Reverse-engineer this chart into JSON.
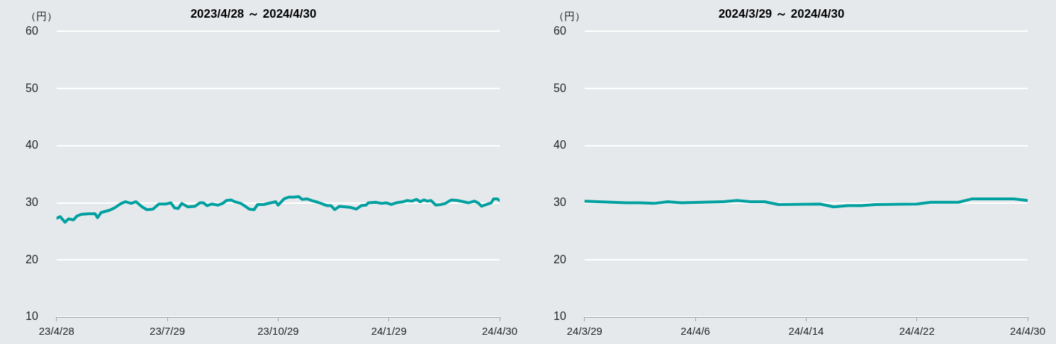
{
  "chart_data": [
    {
      "type": "line",
      "title": "2023/4/28 ～ 2024/4/30",
      "ylabel": "（円）",
      "grid": "y",
      "marker": "none",
      "line_style": "solid",
      "x": [
        "2023-04-28",
        "2023-05-01",
        "2023-05-05",
        "2023-05-08",
        "2023-05-12",
        "2023-05-15",
        "2023-05-19",
        "2023-05-25",
        "2023-05-30",
        "2023-06-01",
        "2023-06-04",
        "2023-06-11",
        "2023-06-15",
        "2023-06-20",
        "2023-06-24",
        "2023-06-29",
        "2023-07-03",
        "2023-07-08",
        "2023-07-12",
        "2023-07-17",
        "2023-07-22",
        "2023-07-28",
        "2023-08-01",
        "2023-08-04",
        "2023-08-07",
        "2023-08-10",
        "2023-08-15",
        "2023-08-21",
        "2023-08-25",
        "2023-08-28",
        "2023-08-31",
        "2023-09-04",
        "2023-09-09",
        "2023-09-13",
        "2023-09-16",
        "2023-09-20",
        "2023-09-23",
        "2023-09-28",
        "2023-10-01",
        "2023-10-05",
        "2023-10-09",
        "2023-10-12",
        "2023-10-17",
        "2023-10-23",
        "2023-10-27",
        "2023-10-29",
        "2023-11-03",
        "2023-11-07",
        "2023-11-11",
        "2023-11-15",
        "2023-11-18",
        "2023-11-22",
        "2023-11-26",
        "2023-12-01",
        "2023-12-06",
        "2023-12-09",
        "2023-12-12",
        "2023-12-15",
        "2023-12-19",
        "2023-12-24",
        "2023-12-28",
        "2024-01-02",
        "2024-01-06",
        "2024-01-10",
        "2024-01-12",
        "2024-01-18",
        "2024-01-23",
        "2024-01-27",
        "2024-01-31",
        "2024-02-04",
        "2024-02-10",
        "2024-02-13",
        "2024-02-17",
        "2024-02-21",
        "2024-02-24",
        "2024-02-27",
        "2024-03-01",
        "2024-03-04",
        "2024-03-08",
        "2024-03-12",
        "2024-03-16",
        "2024-03-19",
        "2024-03-21",
        "2024-03-26",
        "2024-03-31",
        "2024-04-04",
        "2024-04-09",
        "2024-04-12",
        "2024-04-15",
        "2024-04-19",
        "2024-04-23",
        "2024-04-25",
        "2024-04-28",
        "2024-04-30"
      ],
      "series": [
        {
          "color": "#00a0a0",
          "values": [
            27.3,
            27.6,
            26.6,
            27.2,
            27.0,
            27.7,
            28.0,
            28.1,
            28.1,
            27.4,
            28.3,
            28.7,
            29.1,
            29.8,
            30.2,
            29.9,
            30.2,
            29.3,
            28.8,
            28.9,
            29.8,
            29.8,
            30.0,
            29.1,
            29.0,
            29.9,
            29.3,
            29.4,
            30.0,
            30.0,
            29.5,
            29.8,
            29.6,
            29.9,
            30.4,
            30.5,
            30.2,
            29.9,
            29.5,
            28.9,
            28.8,
            29.7,
            29.7,
            30.0,
            30.2,
            29.6,
            30.7,
            31.0,
            31.0,
            31.1,
            30.6,
            30.7,
            30.4,
            30.1,
            29.7,
            29.5,
            29.5,
            28.8,
            29.4,
            29.3,
            29.2,
            28.9,
            29.5,
            29.6,
            30.0,
            30.1,
            29.9,
            30.0,
            29.7,
            30.0,
            30.2,
            30.4,
            30.3,
            30.6,
            30.2,
            30.5,
            30.3,
            30.4,
            29.6,
            29.7,
            29.9,
            30.3,
            30.5,
            30.4,
            30.2,
            30.0,
            30.3,
            30.0,
            29.4,
            29.7,
            30.0,
            30.7,
            30.7,
            30.4
          ]
        }
      ],
      "xlim": [
        "2023-04-28",
        "2024-04-30"
      ],
      "xticks": [
        {
          "value": "2023-04-28",
          "label": "23/4/28"
        },
        {
          "value": "2023-07-29",
          "label": "23/7/29"
        },
        {
          "value": "2023-10-29",
          "label": "23/10/29"
        },
        {
          "value": "2024-01-29",
          "label": "24/1/29"
        },
        {
          "value": "2024-04-30",
          "label": "24/4/30"
        }
      ],
      "ylim": [
        10,
        60
      ],
      "yticks": [
        10,
        20,
        30,
        40,
        50,
        60
      ]
    },
    {
      "type": "line",
      "title": "2024/3/29 ～ 2024/4/30",
      "ylabel": "（円）",
      "grid": "y",
      "marker": "none",
      "line_style": "solid",
      "x": [
        "2024-03-29",
        "2024-04-01",
        "2024-04-02",
        "2024-04-03",
        "2024-04-04",
        "2024-04-05",
        "2024-04-08",
        "2024-04-09",
        "2024-04-10",
        "2024-04-11",
        "2024-04-12",
        "2024-04-15",
        "2024-04-16",
        "2024-04-17",
        "2024-04-18",
        "2024-04-19",
        "2024-04-22",
        "2024-04-23",
        "2024-04-24",
        "2024-04-25",
        "2024-04-26",
        "2024-04-29",
        "2024-04-30"
      ],
      "series": [
        {
          "color": "#00a0a0",
          "values": [
            30.3,
            30.0,
            30.0,
            29.9,
            30.2,
            30.0,
            30.2,
            30.4,
            30.2,
            30.2,
            29.7,
            29.8,
            29.3,
            29.5,
            29.5,
            29.7,
            29.8,
            30.1,
            30.1,
            30.1,
            30.7,
            30.7,
            30.4
          ]
        }
      ],
      "xlim": [
        "2024-03-29",
        "2024-04-30"
      ],
      "xticks": [
        {
          "value": "2024-03-29",
          "label": "24/3/29"
        },
        {
          "value": "2024-04-06",
          "label": "24/4/6"
        },
        {
          "value": "2024-04-14",
          "label": "24/4/14"
        },
        {
          "value": "2024-04-22",
          "label": "24/4/22"
        },
        {
          "value": "2024-04-30",
          "label": "24/4/30"
        }
      ],
      "ylim": [
        10,
        60
      ],
      "yticks": [
        10,
        20,
        30,
        40,
        50,
        60
      ]
    }
  ]
}
